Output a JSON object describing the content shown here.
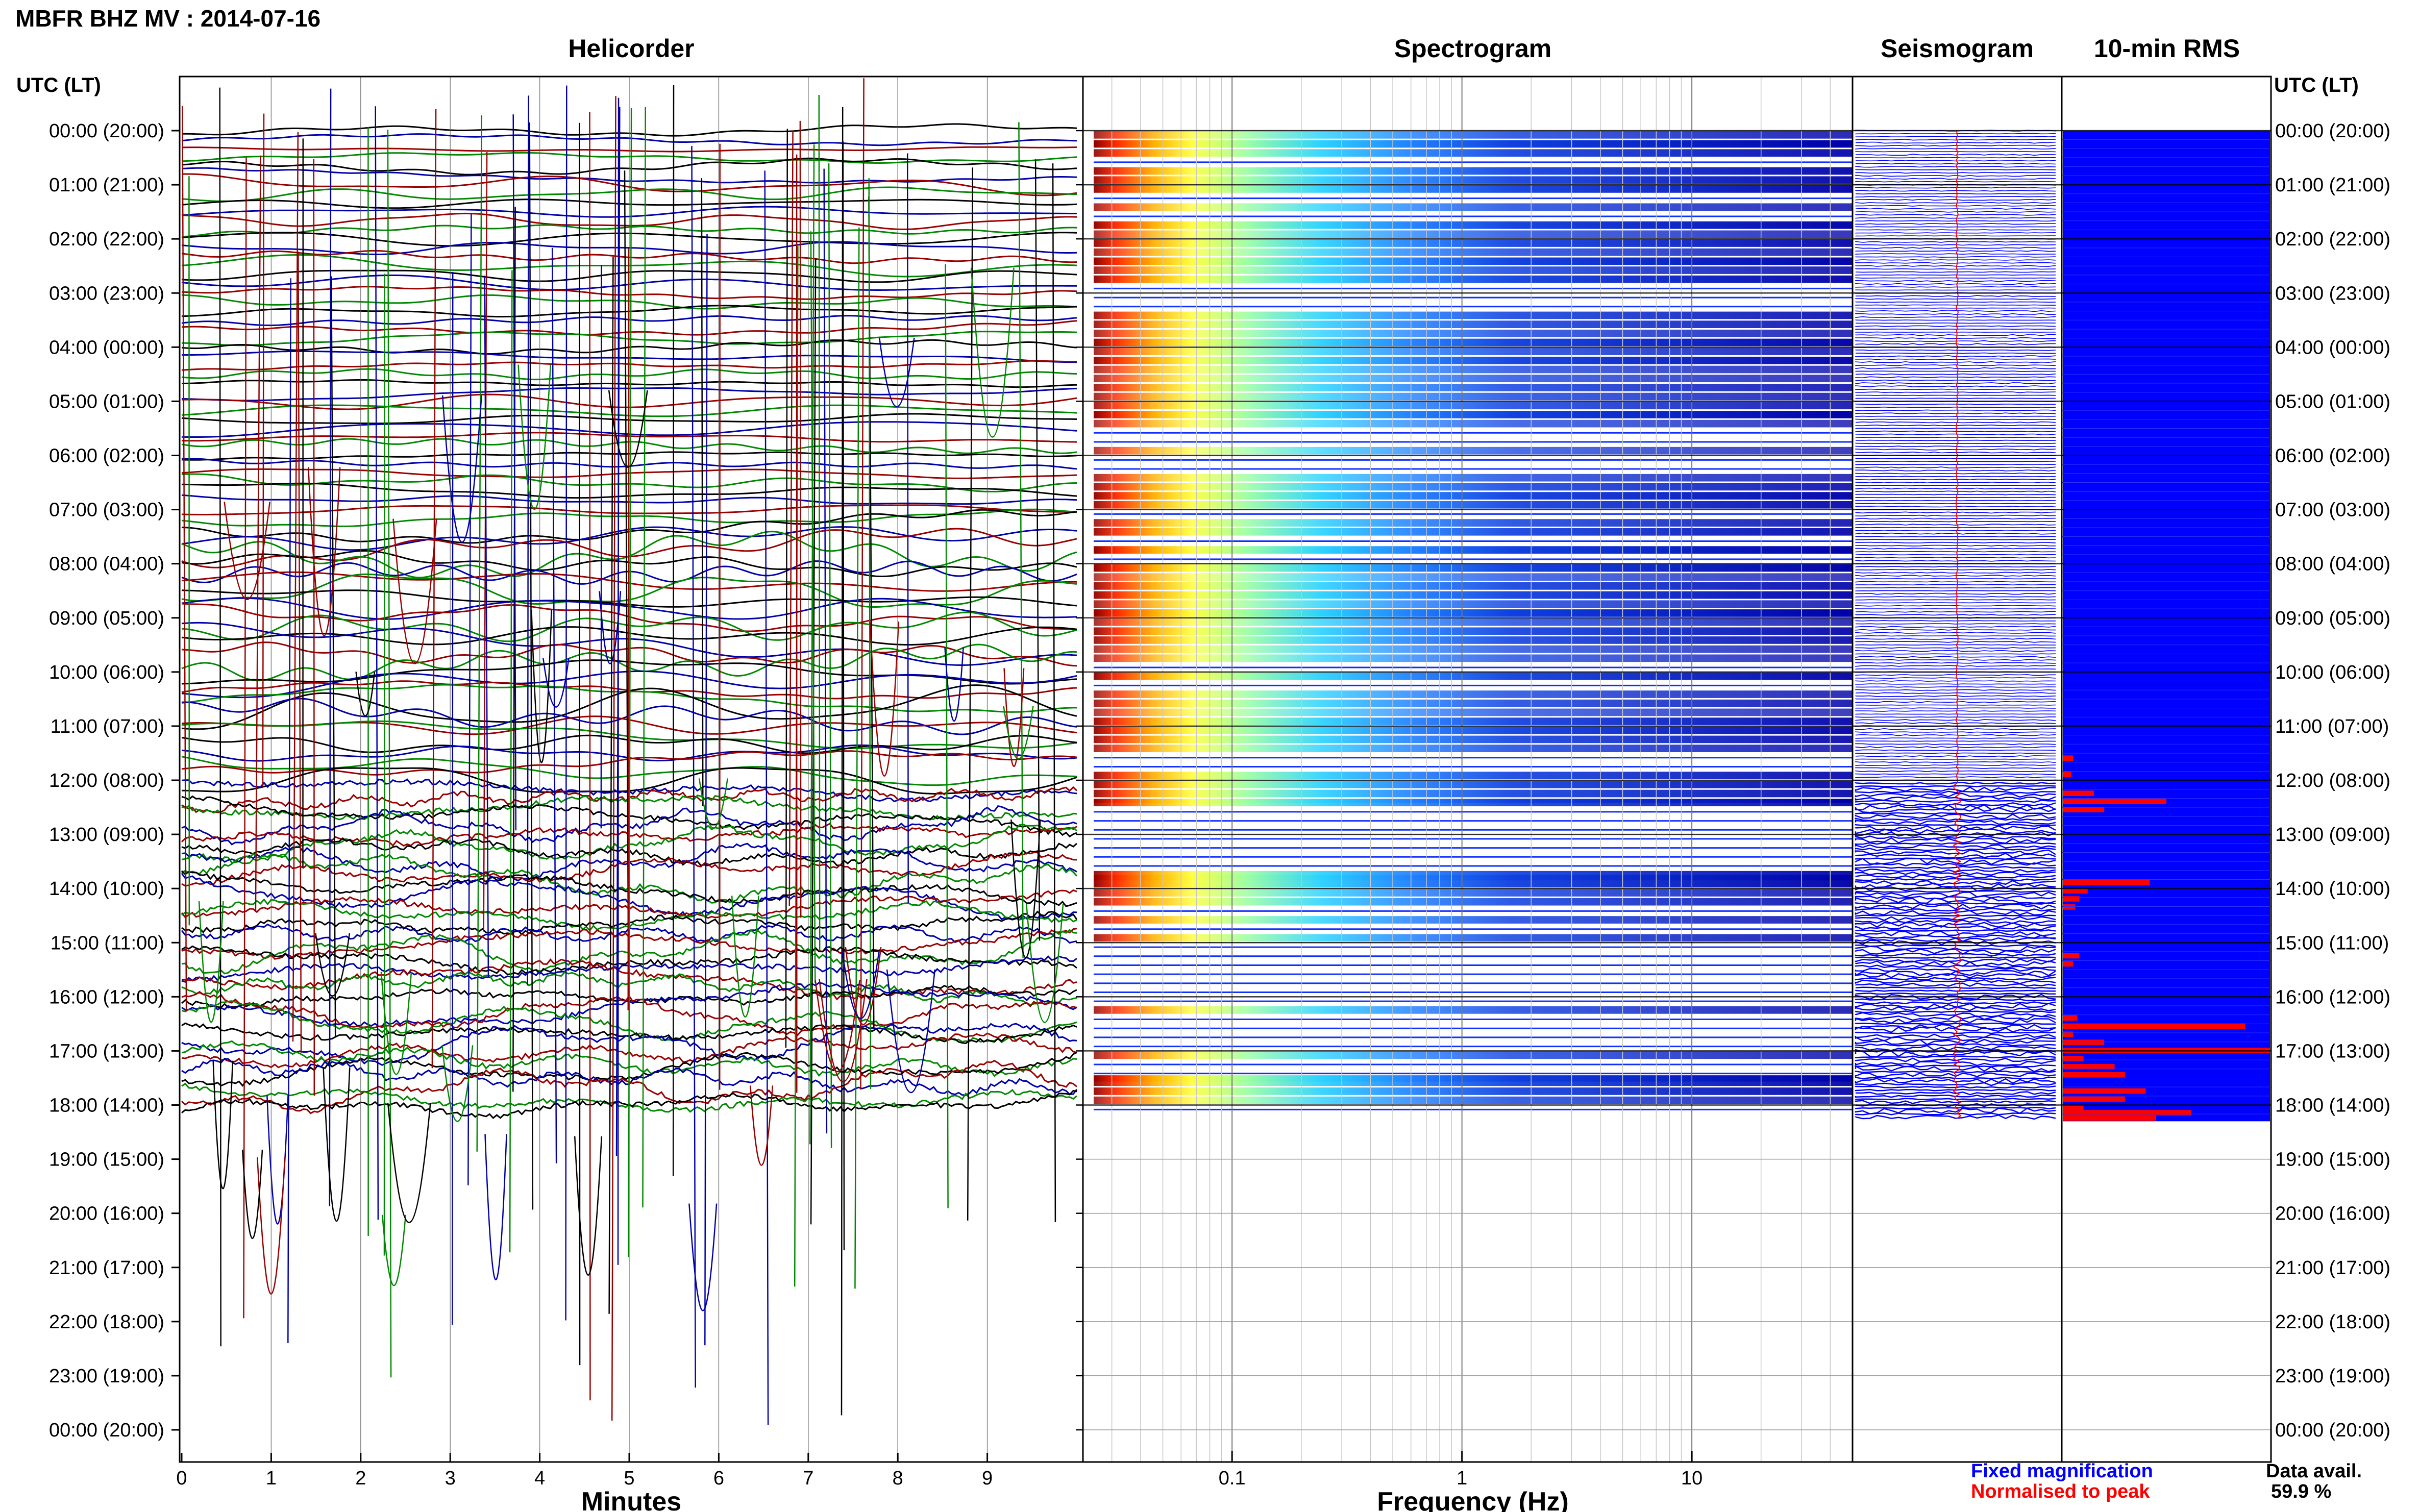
{
  "header": {
    "title": "MBFR BHZ MV : 2014-07-16"
  },
  "panels": {
    "helicorder": "Helicorder",
    "spectrogram": "Spectrogram",
    "seismogram": "Seismogram",
    "rms": "10-min RMS"
  },
  "time_axis": {
    "label_left": "UTC (LT)",
    "label_right": "UTC (LT)",
    "labels": [
      "00:00 (20:00)",
      "01:00 (21:00)",
      "02:00 (22:00)",
      "03:00 (23:00)",
      "04:00 (00:00)",
      "05:00 (01:00)",
      "06:00 (02:00)",
      "07:00 (03:00)",
      "08:00 (04:00)",
      "09:00 (05:00)",
      "10:00 (06:00)",
      "11:00 (07:00)",
      "12:00 (08:00)",
      "13:00 (09:00)",
      "14:00 (10:00)",
      "15:00 (11:00)",
      "16:00 (12:00)",
      "17:00 (13:00)",
      "18:00 (14:00)",
      "19:00 (15:00)",
      "20:00 (16:00)",
      "21:00 (17:00)",
      "22:00 (18:00)",
      "23:00 (19:00)",
      "00:00 (20:00)"
    ]
  },
  "legend": {
    "fixed": "Fixed magnification",
    "normalised": "Normalised to peak",
    "fixed_color": "#0000ff",
    "normalised_color": "#ff0000",
    "avail_label": "Data avail.",
    "avail_value": "59.9 %"
  },
  "chart_data": [
    {
      "type": "line",
      "title": "Helicorder",
      "xlabel": "Minutes",
      "ylabel": "UTC (LT)",
      "xlim": [
        0,
        10
      ],
      "x_ticks": [
        "0",
        "1",
        "2",
        "3",
        "4",
        "5",
        "6",
        "7",
        "8",
        "9"
      ],
      "rows_per_hour": 6,
      "trace_colors": [
        "#000000",
        "#0000aa",
        "#990000",
        "#008800"
      ],
      "data_until_hour": 18.3
    },
    {
      "type": "heatmap",
      "title": "Spectrogram",
      "xlabel": "Frequency (Hz)",
      "x_scale": "log",
      "xlim": [
        0.025,
        50
      ],
      "x_ticks": [
        "0.1",
        "1",
        "10"
      ],
      "x_tick_values": [
        0.1,
        1,
        10
      ],
      "colormap": "jet",
      "data_until_hour": 18.3
    },
    {
      "type": "line",
      "title": "Seismogram",
      "series": [
        {
          "name": "Fixed magnification",
          "color": "#0000ff"
        },
        {
          "name": "Normalised to peak",
          "color": "#ff0000"
        }
      ],
      "data_until_hour": 18.3
    },
    {
      "type": "bar",
      "title": "10-min RMS",
      "orientation": "horizontal",
      "bin_minutes": 10,
      "background": "#0000ff",
      "bar_color": "#ff0000",
      "data_until_hour": 18.3,
      "bars": [
        {
          "hour": 11.6,
          "value": 0.05
        },
        {
          "hour": 11.9,
          "value": 0.04
        },
        {
          "hour": 12.25,
          "value": 0.15
        },
        {
          "hour": 12.4,
          "value": 0.5
        },
        {
          "hour": 12.55,
          "value": 0.2
        },
        {
          "hour": 13.9,
          "value": 0.42
        },
        {
          "hour": 14.05,
          "value": 0.12
        },
        {
          "hour": 14.2,
          "value": 0.08
        },
        {
          "hour": 14.35,
          "value": 0.06
        },
        {
          "hour": 15.25,
          "value": 0.08
        },
        {
          "hour": 15.4,
          "value": 0.05
        },
        {
          "hour": 16.4,
          "value": 0.07
        },
        {
          "hour": 16.55,
          "value": 0.88
        },
        {
          "hour": 16.7,
          "value": 0.05
        },
        {
          "hour": 16.85,
          "value": 0.2
        },
        {
          "hour": 17.0,
          "value": 1.0
        },
        {
          "hour": 17.15,
          "value": 0.1
        },
        {
          "hour": 17.3,
          "value": 0.25
        },
        {
          "hour": 17.45,
          "value": 0.3
        },
        {
          "hour": 17.75,
          "value": 0.4
        },
        {
          "hour": 17.9,
          "value": 0.3
        },
        {
          "hour": 18.05,
          "value": 0.1
        },
        {
          "hour": 18.15,
          "value": 0.62
        },
        {
          "hour": 18.25,
          "value": 0.45
        }
      ]
    }
  ]
}
